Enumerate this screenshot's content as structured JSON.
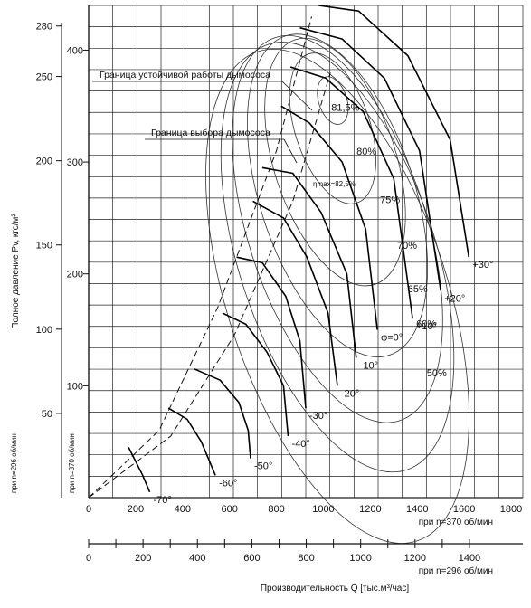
{
  "chart_data": {
    "type": "line",
    "xlabel": "Производительность  Q [тыс.м³/час]",
    "ylabel": "Полное давление  Pv, кгс/м²",
    "x_axis_370": {
      "label": "при n=370 об/мин",
      "ticks": [
        "0",
        "200",
        "400",
        "600",
        "800",
        "1000",
        "1200",
        "1400",
        "1600",
        "1800"
      ],
      "range": [
        0,
        1850
      ]
    },
    "x_axis_296": {
      "label": "при n=296 об/мин",
      "ticks": [
        "0",
        "200",
        "400",
        "600",
        "800",
        "1000",
        "1200",
        "1400"
      ],
      "range": [
        0,
        1480
      ]
    },
    "y_axis_370": {
      "label": "при n=370 об/мин",
      "ticks": [
        "100",
        "200",
        "300",
        "400"
      ],
      "range": [
        0,
        440
      ]
    },
    "y_axis_296": {
      "label": "при n=296 об/мин",
      "ticks": [
        "50",
        "100",
        "150",
        "200",
        "250",
        "280"
      ],
      "range": [
        0,
        282
      ]
    },
    "annotations": {
      "stability_boundary": "Граница устойчивой работы дымососа",
      "selection_boundary": "Граница выбора дымососа",
      "eta_max": "ηmax=82,5%"
    },
    "efficiency_contours": [
      {
        "label": "81,5%",
        "cx": 1040,
        "cy": 355,
        "rx": 60,
        "ry": 22
      },
      {
        "label": "80%",
        "cx": 1040,
        "cy": 330,
        "rx": 160,
        "ry": 70
      },
      {
        "label": "75%",
        "cx": 1050,
        "cy": 300,
        "rx": 260,
        "ry": 115
      },
      {
        "label": "70%",
        "cx": 1060,
        "cy": 270,
        "rx": 330,
        "ry": 150
      },
      {
        "label": "65%",
        "cx": 1060,
        "cy": 240,
        "rx": 380,
        "ry": 180
      },
      {
        "label": "60%",
        "cx": 1060,
        "cy": 215,
        "rx": 420,
        "ry": 200
      },
      {
        "label": "50%",
        "cx": 1060,
        "cy": 180,
        "rx": 470,
        "ry": 230
      }
    ],
    "series": [
      {
        "name": "-70°",
        "x": [
          170,
          230,
          260
        ],
        "y": [
          45,
          20,
          5
        ]
      },
      {
        "name": "-60°",
        "x": [
          340,
          420,
          480,
          520,
          540
        ],
        "y": [
          80,
          70,
          50,
          30,
          20
        ]
      },
      {
        "name": "-50°",
        "x": [
          450,
          560,
          640,
          680,
          690
        ],
        "y": [
          115,
          105,
          85,
          60,
          35
        ]
      },
      {
        "name": "-40°",
        "x": [
          570,
          670,
          760,
          830,
          850
        ],
        "y": [
          165,
          155,
          130,
          100,
          55
        ]
      },
      {
        "name": "-30°",
        "x": [
          630,
          740,
          840,
          900,
          925
        ],
        "y": [
          215,
          210,
          180,
          140,
          80
        ]
      },
      {
        "name": "-20°",
        "x": [
          700,
          830,
          930,
          1020,
          1060
        ],
        "y": [
          265,
          250,
          215,
          165,
          100
        ]
      },
      {
        "name": "-10°",
        "x": [
          740,
          870,
          990,
          1100,
          1140
        ],
        "y": [
          295,
          290,
          255,
          200,
          125
        ]
      },
      {
        "name": "φ=0°",
        "x": [
          820,
          940,
          1080,
          1180,
          1230
        ],
        "y": [
          350,
          335,
          300,
          240,
          150
        ]
      },
      {
        "name": "+10°",
        "x": [
          860,
          1010,
          1170,
          1300,
          1380
        ],
        "y": [
          385,
          375,
          345,
          285,
          160
        ]
      },
      {
        "name": "+20°",
        "x": [
          900,
          1080,
          1260,
          1410,
          1500
        ],
        "y": [
          420,
          410,
          375,
          310,
          185
        ]
      },
      {
        "name": "+30°",
        "x": [
          980,
          1150,
          1360,
          1540,
          1620
        ],
        "y": [
          440,
          435,
          395,
          320,
          215
        ]
      }
    ],
    "boundaries": [
      {
        "name": "stability",
        "x": [
          0,
          300,
          550,
          800,
          950
        ],
        "y": [
          0,
          60,
          170,
          310,
          430
        ]
      },
      {
        "name": "selection",
        "x": [
          0,
          350,
          620,
          870,
          1030
        ],
        "y": [
          0,
          55,
          145,
          265,
          380
        ]
      }
    ]
  }
}
